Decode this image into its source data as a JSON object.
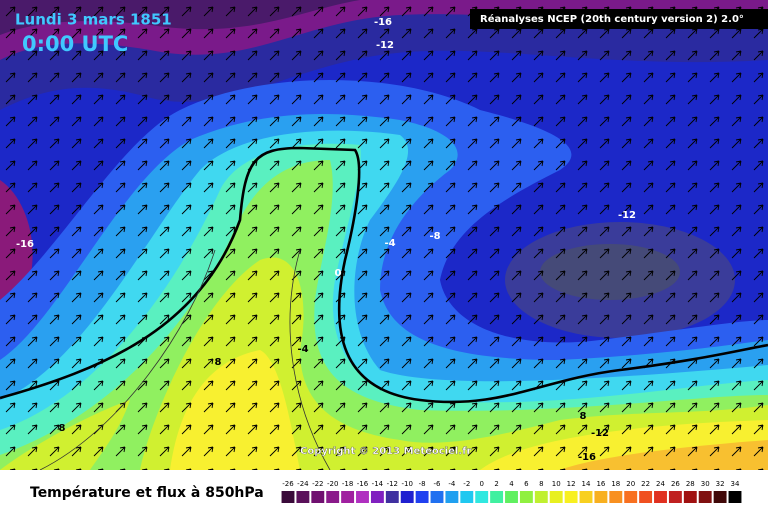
{
  "header": {
    "date": "Lundi 3 mars 1851",
    "time": "0:00 UTC",
    "source": "Réanalyses NCEP (20th century version 2) 2.0°"
  },
  "map": {
    "contour_labels": [
      -16,
      -12,
      -16,
      -4,
      -8,
      0,
      -4,
      8,
      -12,
      8,
      8,
      -12,
      -16
    ],
    "copyright": "Copyright © 2013 Meteociel.fr"
  },
  "footer": {
    "title": "Température et flux à 850hPa",
    "colorbar": {
      "ticks": [
        -26,
        -24,
        -22,
        -20,
        -18,
        -16,
        -14,
        -12,
        -10,
        -8,
        -6,
        -4,
        -2,
        0,
        2,
        4,
        6,
        8,
        10,
        12,
        14,
        16,
        18,
        20,
        22,
        24,
        26,
        28,
        30,
        32,
        34
      ],
      "colors": [
        "#3a0a3a",
        "#5a105a",
        "#701070",
        "#8a1a8a",
        "#a020a0",
        "#b030c0",
        "#8020c0",
        "#4030a0",
        "#2020d0",
        "#2040f0",
        "#2070f0",
        "#20a0f0",
        "#20c8f0",
        "#30e8e0",
        "#40f0a0",
        "#60f060",
        "#90f040",
        "#c0f030",
        "#e8f020",
        "#f8f020",
        "#f8d020",
        "#f8b020",
        "#f89020",
        "#f87020",
        "#f05020",
        "#e03020",
        "#c02020",
        "#a01010",
        "#801010",
        "#400808",
        "#000000"
      ]
    }
  }
}
